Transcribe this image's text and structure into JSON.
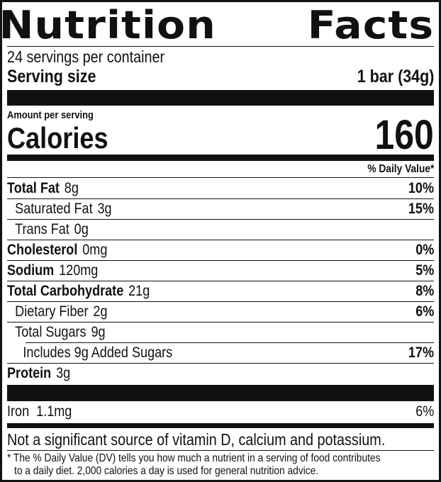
{
  "title": {
    "left": "Nutrition",
    "right": "Facts"
  },
  "servings_per_container": "24 servings per container",
  "serving_size": {
    "label": "Serving size",
    "value": "1 bar (34g)"
  },
  "amount_per_serving": "Amount per serving",
  "calories": {
    "label": "Calories",
    "value": "160"
  },
  "daily_value_header": "% Daily Value*",
  "nutrients": [
    {
      "name": "Total Fat",
      "amount": "8g",
      "dv": "10%"
    },
    {
      "name": "Saturated Fat",
      "amount": "3g",
      "dv": "15%"
    },
    {
      "name": "Trans Fat",
      "amount": "0g",
      "dv": ""
    },
    {
      "name": "Cholesterol",
      "amount": "0mg",
      "dv": "0%"
    },
    {
      "name": "Sodium",
      "amount": "120mg",
      "dv": "5%"
    },
    {
      "name": "Total Carbohydrate",
      "amount": "21g",
      "dv": "8%"
    },
    {
      "name": "Dietary Fiber",
      "amount": "2g",
      "dv": "6%"
    },
    {
      "name": "Total Sugars",
      "amount": "9g",
      "dv": ""
    },
    {
      "name": "Includes 9g Added Sugars",
      "amount": "",
      "dv": "17%"
    },
    {
      "name": "Protein",
      "amount": "3g",
      "dv": ""
    }
  ],
  "vitamins": [
    {
      "name": "Iron",
      "amount": "1.1mg",
      "dv": "6%"
    }
  ],
  "not_significant": "Not a significant source of vitamin D, calcium and potassium.",
  "footnote": {
    "line1": "* The % Daily Value (DV) tells you how much a nutrient in a serving of food contributes",
    "line2": "to a daily diet. 2,000 calories a day is used for general nutrition advice."
  }
}
